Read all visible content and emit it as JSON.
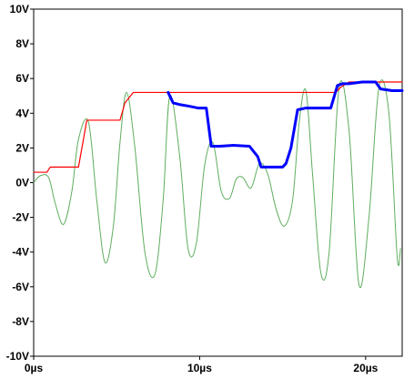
{
  "chart_data": {
    "type": "line",
    "xlabel": "",
    "ylabel": "",
    "xlim": [
      0,
      22.2
    ],
    "ylim": [
      -10,
      10
    ],
    "x_ticks": [
      0,
      10,
      20
    ],
    "x_tick_labels": [
      "0µs",
      "10µs",
      "20µs"
    ],
    "y_ticks": [
      10,
      8,
      6,
      4,
      2,
      0,
      -2,
      -4,
      -6,
      -8,
      -10
    ],
    "y_tick_labels": [
      "10V",
      "8V",
      "6V",
      "4V",
      "2V",
      "0V",
      "-2V",
      "-4V",
      "-6V",
      "-8V",
      "-10V"
    ],
    "grid": false,
    "series": [
      {
        "role": "sine",
        "color": "#5fae5f",
        "x": [
          0,
          0.4,
          0.9,
          1.3,
          1.8,
          2.3,
          2.7,
          3.3,
          3.8,
          4.3,
          4.8,
          5.2,
          5.6,
          6.1,
          6.7,
          7.3,
          7.8,
          8.2,
          8.8,
          9.3,
          9.8,
          10.3,
          10.8,
          11.3,
          11.8,
          12.2,
          12.6,
          13.1,
          13.6,
          14.1,
          14.6,
          15.1,
          15.6,
          16.0,
          16.4,
          16.8,
          17.3,
          17.8,
          18.4,
          19.0,
          19.6,
          20.2,
          20.8,
          21.4,
          21.9,
          22.1
        ],
        "values": [
          0,
          0.4,
          0.3,
          -1.2,
          -2.4,
          -0.5,
          2.5,
          3.5,
          -1.0,
          -4.6,
          -2.5,
          2.3,
          5.2,
          2.0,
          -4.0,
          -5.3,
          -1.0,
          5.0,
          1.5,
          -3.8,
          -3.5,
          1.0,
          2.3,
          -0.5,
          -0.9,
          0.2,
          0.3,
          -0.3,
          1.1,
          0.5,
          -1.5,
          -2.5,
          -1.0,
          3.5,
          5.3,
          0.5,
          -5.2,
          -4.0,
          5.5,
          3.0,
          -5.9,
          -2.0,
          5.5,
          4.0,
          -4.3,
          -3.8
        ]
      },
      {
        "role": "staircase-red",
        "color": "#ff0000",
        "x": [
          0,
          0.8,
          1.0,
          2.7,
          3.0,
          3.2,
          5.2,
          5.5,
          6.0,
          8.0,
          12.0,
          15.0,
          17.0,
          18.2,
          18.5,
          19.0,
          22.2
        ],
        "values": [
          0.6,
          0.6,
          0.9,
          0.9,
          2.5,
          3.6,
          3.6,
          4.6,
          5.2,
          5.2,
          5.2,
          5.2,
          5.2,
          5.2,
          5.5,
          5.8,
          5.8
        ]
      },
      {
        "role": "staircase-blue",
        "color": "#0000ff",
        "x": [
          8.1,
          8.4,
          8.8,
          9.4,
          9.9,
          10.4,
          10.7,
          11.2,
          12.0,
          13.0,
          13.5,
          13.7,
          14.1,
          15.0,
          15.2,
          15.5,
          15.9,
          16.4,
          17.0,
          17.9,
          18.3,
          18.6,
          19.0,
          19.8,
          20.6,
          20.9,
          21.6,
          22.2
        ],
        "values": [
          5.2,
          4.6,
          4.5,
          4.4,
          4.3,
          4.3,
          2.1,
          2.1,
          2.15,
          2.1,
          1.5,
          0.9,
          0.9,
          0.9,
          1.1,
          2.0,
          4.2,
          4.3,
          4.3,
          4.3,
          5.6,
          5.7,
          5.7,
          5.8,
          5.8,
          5.4,
          5.3,
          5.3
        ]
      }
    ]
  }
}
